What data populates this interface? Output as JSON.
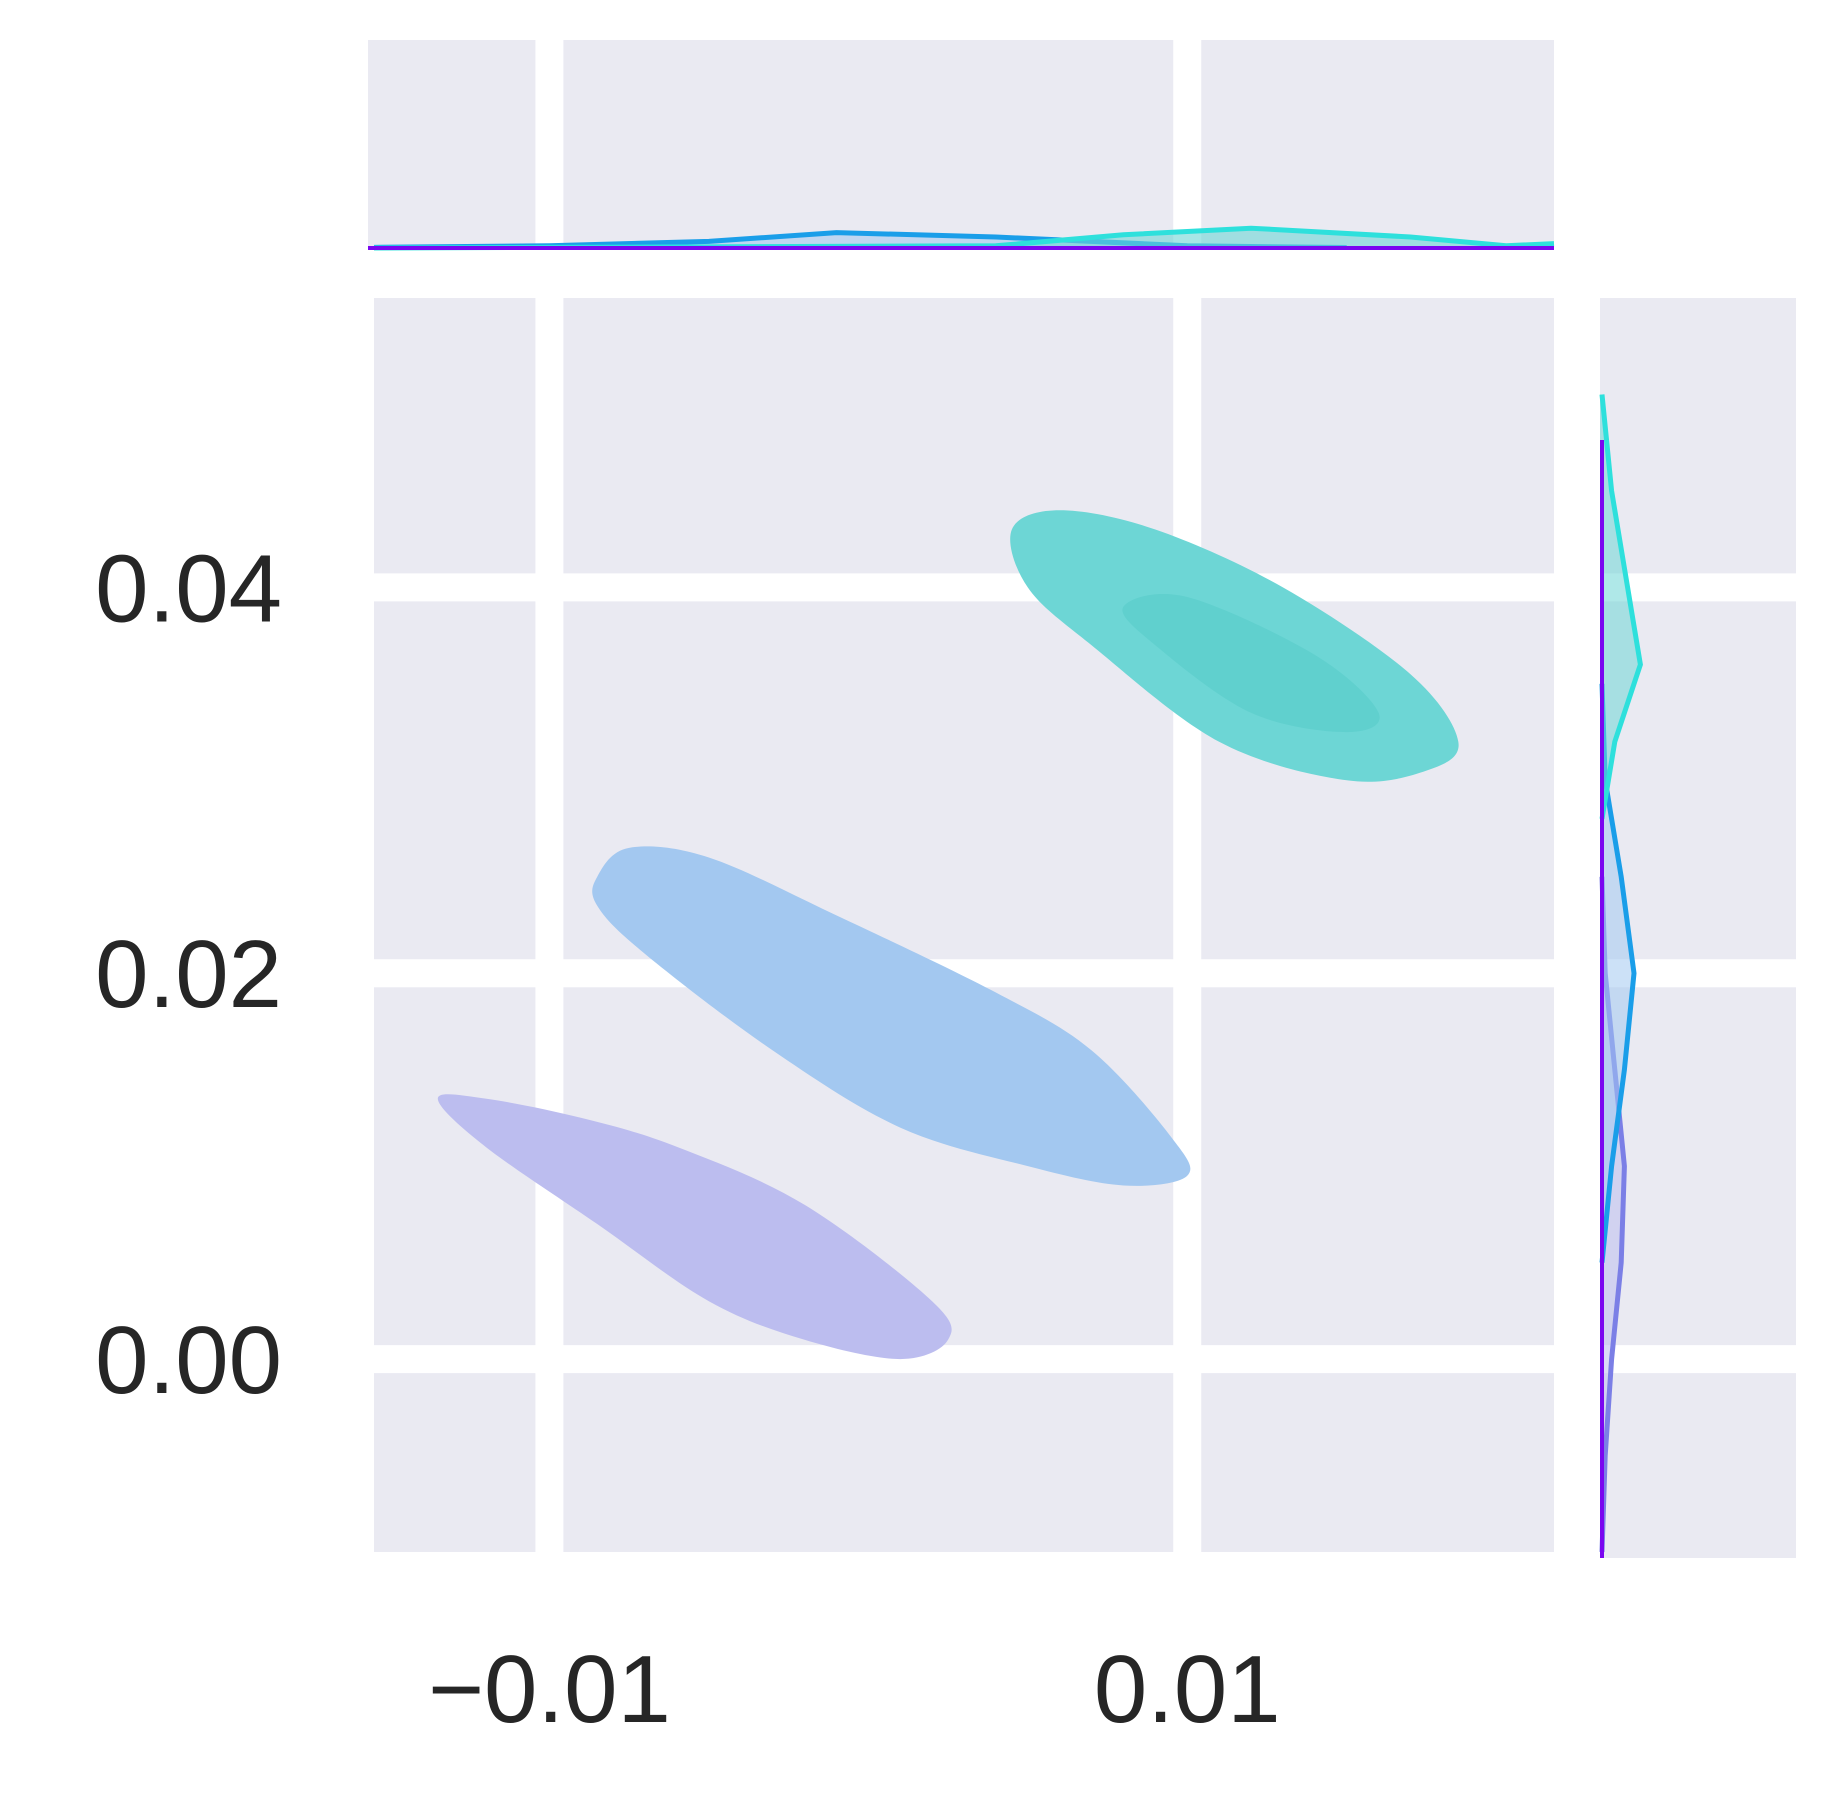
{
  "chart_data": {
    "type": "kde-jointplot",
    "title": "",
    "xlabel": "",
    "ylabel": "",
    "xlim": [
      -0.0155,
      0.0215
    ],
    "ylim": [
      -0.01,
      0.055
    ],
    "grid": true,
    "legend": "none",
    "x_ticks": [
      {
        "value": -0.01,
        "label": "−0.01"
      },
      {
        "value": 0.01,
        "label": "0.01"
      }
    ],
    "y_ticks": [
      {
        "value": 0.0,
        "label": "0.00"
      },
      {
        "value": 0.02,
        "label": "0.02"
      },
      {
        "value": 0.04,
        "label": "0.04"
      }
    ],
    "series": [
      {
        "color": "#7b7fe6",
        "fill": "#bcbdef",
        "outer_contour": [
          [
            -0.0135,
            0.0135
          ],
          [
            -0.012,
            0.0135
          ],
          [
            -0.009,
            0.0125
          ],
          [
            -0.006,
            0.011
          ],
          [
            -0.002,
            0.008
          ],
          [
            0.002,
            0.003
          ],
          [
            0.0025,
            0.001
          ],
          [
            0.001,
            0.0
          ],
          [
            -0.002,
            0.001
          ],
          [
            -0.005,
            0.003
          ],
          [
            -0.0085,
            0.007
          ],
          [
            -0.012,
            0.011
          ]
        ],
        "marginal_y": [
          [
            -0.01,
            0
          ],
          [
            -0.005,
            1
          ],
          [
            0.0,
            3
          ],
          [
            0.005,
            6
          ],
          [
            0.01,
            7
          ],
          [
            0.015,
            4
          ],
          [
            0.02,
            1
          ],
          [
            0.025,
            0
          ]
        ]
      },
      {
        "color": "#1a9ee9",
        "fill": "#a3c8f0",
        "outer_contour": [
          [
            -0.0085,
            0.025
          ],
          [
            -0.0075,
            0.0265
          ],
          [
            -0.005,
            0.026
          ],
          [
            -0.001,
            0.023
          ],
          [
            0.004,
            0.019
          ],
          [
            0.007,
            0.016
          ],
          [
            0.0095,
            0.0115
          ],
          [
            0.01,
            0.0095
          ],
          [
            0.008,
            0.009
          ],
          [
            0.005,
            0.01
          ],
          [
            0.001,
            0.012
          ],
          [
            -0.003,
            0.016
          ],
          [
            -0.007,
            0.021
          ],
          [
            -0.0085,
            0.0235
          ]
        ],
        "marginal_x": [
          [
            -0.0155,
            0.3
          ],
          [
            -0.01,
            1
          ],
          [
            -0.005,
            3
          ],
          [
            -0.001,
            7
          ],
          [
            0.004,
            5
          ],
          [
            0.01,
            1
          ],
          [
            0.015,
            0.2
          ]
        ],
        "marginal_y": [
          [
            0.005,
            0
          ],
          [
            0.01,
            3
          ],
          [
            0.015,
            7
          ],
          [
            0.02,
            10
          ],
          [
            0.025,
            6
          ],
          [
            0.03,
            1
          ],
          [
            0.035,
            0
          ]
        ]
      },
      {
        "color": "#2ee0dc",
        "fill": "#6dd6d5",
        "outer_contour": [
          [
            0.0045,
            0.043
          ],
          [
            0.006,
            0.044
          ],
          [
            0.009,
            0.043
          ],
          [
            0.013,
            0.04
          ],
          [
            0.017,
            0.0355
          ],
          [
            0.0185,
            0.032
          ],
          [
            0.0175,
            0.0305
          ],
          [
            0.015,
            0.03
          ],
          [
            0.011,
            0.032
          ],
          [
            0.007,
            0.037
          ],
          [
            0.005,
            0.04
          ]
        ],
        "inner_contour": [
          [
            0.008,
            0.039
          ],
          [
            0.01,
            0.0395
          ],
          [
            0.014,
            0.0365
          ],
          [
            0.016,
            0.0335
          ],
          [
            0.015,
            0.0325
          ],
          [
            0.012,
            0.0335
          ],
          [
            0.009,
            0.037
          ]
        ],
        "marginal_x": [
          [
            -0.0155,
            0.0
          ],
          [
            0.004,
            1
          ],
          [
            0.008,
            6
          ],
          [
            0.012,
            9
          ],
          [
            0.017,
            5
          ],
          [
            0.02,
            1
          ],
          [
            0.0215,
            2
          ]
        ],
        "marginal_y": [
          [
            0.028,
            0
          ],
          [
            0.032,
            4
          ],
          [
            0.036,
            12
          ],
          [
            0.04,
            8
          ],
          [
            0.045,
            3
          ],
          [
            0.05,
            0
          ]
        ]
      }
    ]
  }
}
